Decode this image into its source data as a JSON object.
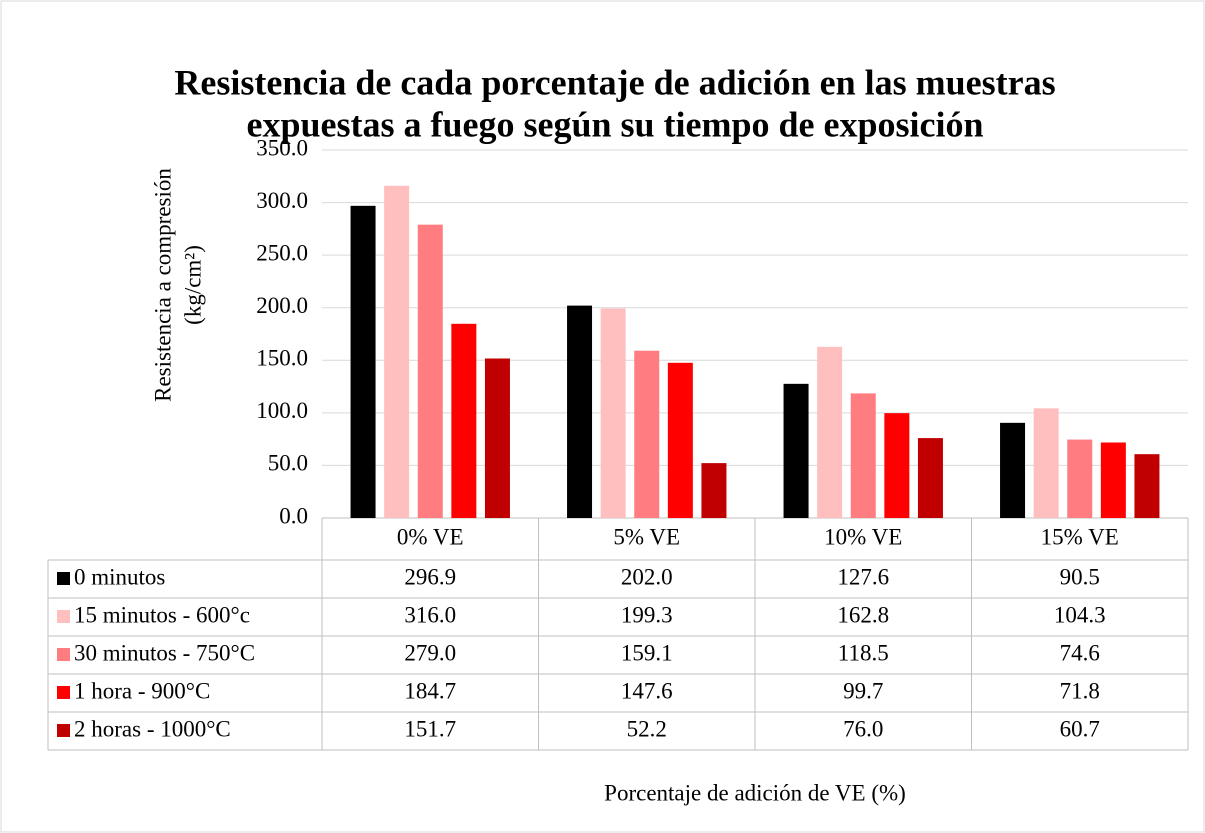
{
  "chart_data": {
    "type": "bar",
    "title": [
      "Resistencia de cada porcentaje de adición en las muestras",
      "expuestas a fuego según su tiempo de exposición"
    ],
    "ylabel": [
      "Resistencia a compresión",
      "(kg/cm²)"
    ],
    "xlabel": "Porcentaje de adición de VE (%)",
    "categories": [
      "0% VE",
      "5% VE",
      "10% VE",
      "15% VE"
    ],
    "series": [
      {
        "name": "0 minutos",
        "color": "#000000",
        "values": [
          296.9,
          202.0,
          127.6,
          90.5
        ],
        "value_labels": [
          "296.9",
          "202.0",
          "127.6",
          "90.5"
        ]
      },
      {
        "name": "15 minutos - 600°c",
        "color": "#ffbfbf",
        "values": [
          316.0,
          199.3,
          162.8,
          104.3
        ],
        "value_labels": [
          "316.0",
          "199.3",
          "162.8",
          "104.3"
        ]
      },
      {
        "name": "30 minutos - 750°C",
        "color": "#ff7c80",
        "values": [
          279.0,
          159.1,
          118.5,
          74.6
        ],
        "value_labels": [
          "279.0",
          "159.1",
          "118.5",
          "74.6"
        ]
      },
      {
        "name": "1 hora - 900°C",
        "color": "#ff0000",
        "values": [
          184.7,
          147.6,
          99.7,
          71.8
        ],
        "value_labels": [
          "184.7",
          "147.6",
          "99.7",
          "71.8"
        ]
      },
      {
        "name": "2 horas - 1000°C",
        "color": "#c00000",
        "values": [
          151.7,
          52.2,
          76.0,
          60.7
        ],
        "value_labels": [
          "151.7",
          "52.2",
          "76.0",
          "60.7"
        ]
      }
    ],
    "ylim": [
      0,
      350
    ],
    "yticks": [
      {
        "value": 0,
        "label": "0.0"
      },
      {
        "value": 50,
        "label": "50.0"
      },
      {
        "value": 100,
        "label": "100.0"
      },
      {
        "value": 150,
        "label": "150.0"
      },
      {
        "value": 200,
        "label": "200.0"
      },
      {
        "value": 250,
        "label": "250.0"
      },
      {
        "value": 300,
        "label": "300.0"
      },
      {
        "value": 350,
        "label": "350.0"
      }
    ],
    "grid": true
  }
}
